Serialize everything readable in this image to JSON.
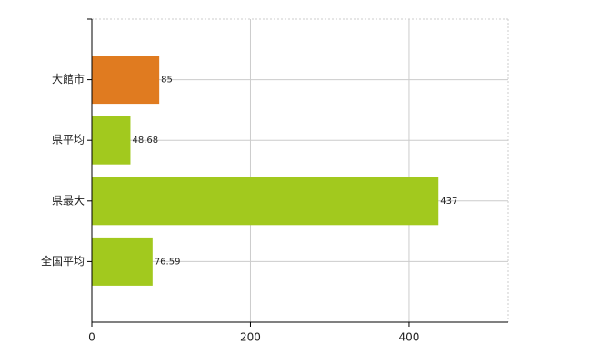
{
  "chart_data": {
    "type": "hbar",
    "categories": [
      "大館市",
      "県平均",
      "県最大",
      "全国平均"
    ],
    "values": [
      85,
      48.68,
      437,
      76.59
    ],
    "colors": [
      "#e07b20",
      "#a2c91e",
      "#a2c91e",
      "#a2c91e"
    ],
    "xlim": [
      0,
      525
    ],
    "xticks": [
      0,
      200,
      400
    ],
    "grid": true
  }
}
